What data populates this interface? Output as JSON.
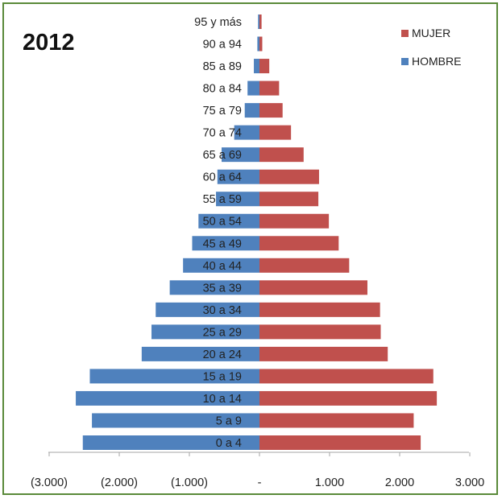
{
  "chart_data": {
    "type": "bar",
    "orientation": "horizontal",
    "layout": "population-pyramid",
    "title": "2012",
    "categories": [
      "0 a 4",
      "5 a 9",
      "10 a 14",
      "15 a 19",
      "20 a 24",
      "25 a 29",
      "30 a 34",
      "35 a 39",
      "40 a 44",
      "45 a 49",
      "50 a 54",
      "55 a 59",
      "60 a 64",
      "65 a 69",
      "70 a 74",
      "75 a 79",
      "80 a 84",
      "85 a 89",
      "90 a 94",
      "95  y más"
    ],
    "series": [
      {
        "name": "MUJER",
        "color": "#c0504d",
        "values": [
          2300,
          2200,
          2530,
          2480,
          1830,
          1730,
          1720,
          1540,
          1280,
          1130,
          990,
          840,
          850,
          630,
          450,
          330,
          280,
          140,
          40,
          30
        ]
      },
      {
        "name": "HOMBRE",
        "color": "#4f81bd",
        "values": [
          -2520,
          -2390,
          -2620,
          -2420,
          -1680,
          -1540,
          -1480,
          -1280,
          -1090,
          -960,
          -870,
          -620,
          -600,
          -540,
          -360,
          -210,
          -170,
          -80,
          -30,
          -20
        ]
      }
    ],
    "xlim": [
      -3000,
      3000
    ],
    "xticks": [
      -3000,
      -2000,
      -1000,
      0,
      1000,
      2000,
      3000
    ],
    "xtick_labels": [
      "(3.000)",
      "(2.000)",
      "(1.000)",
      "-",
      "1.000",
      "2.000",
      "3.000"
    ],
    "xlabel": "",
    "ylabel": "",
    "legend": {
      "position": "top-right",
      "entries": [
        "MUJER",
        "HOMBRE"
      ]
    },
    "grid": false
  }
}
